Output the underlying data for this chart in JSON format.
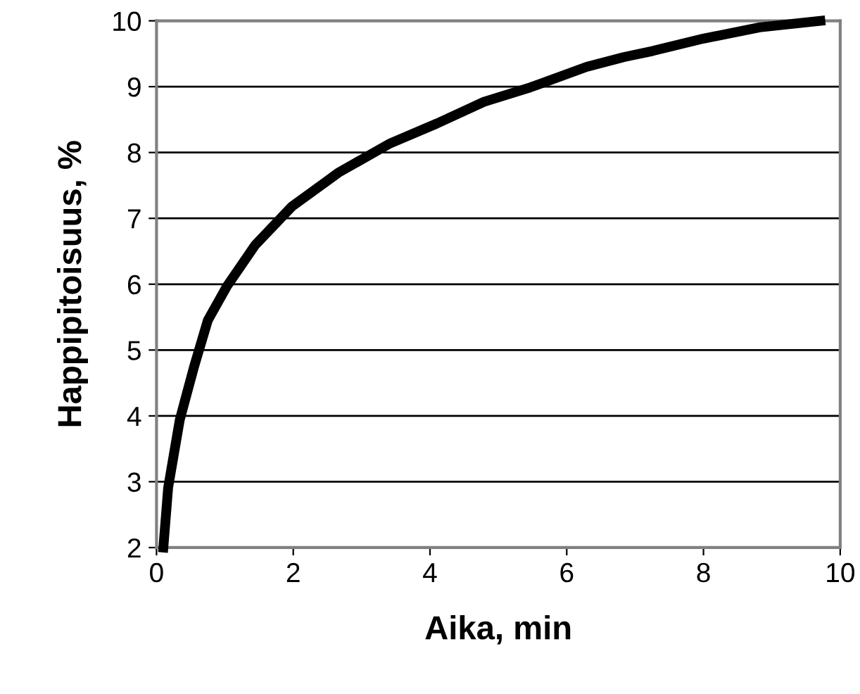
{
  "chart_data": {
    "type": "line",
    "xlabel": "Aika, min",
    "ylabel": "Happipitoisuus, %",
    "series": [
      {
        "color": "#000000",
        "x": [
          0.1,
          0.17,
          0.34,
          0.55,
          0.75,
          1.03,
          1.44,
          1.98,
          2.67,
          3.42,
          4.1,
          4.79,
          5.47,
          6.29,
          6.84,
          7.25,
          8.0,
          8.82,
          9.71
        ],
        "values": [
          2.0,
          2.91,
          3.94,
          4.75,
          5.45,
          5.97,
          6.59,
          7.18,
          7.7,
          8.14,
          8.44,
          8.77,
          8.99,
          9.3,
          9.45,
          9.54,
          9.73,
          9.9,
          10.0
        ]
      }
    ],
    "xlim": [
      0,
      10
    ],
    "ylim": [
      2,
      10
    ],
    "xticks": [
      0,
      2,
      4,
      6,
      8,
      10
    ],
    "yticks": [
      2,
      3,
      4,
      5,
      6,
      7,
      8,
      9,
      10
    ],
    "grid": "y",
    "marker": "none",
    "line_style": "solid",
    "legend": false
  }
}
